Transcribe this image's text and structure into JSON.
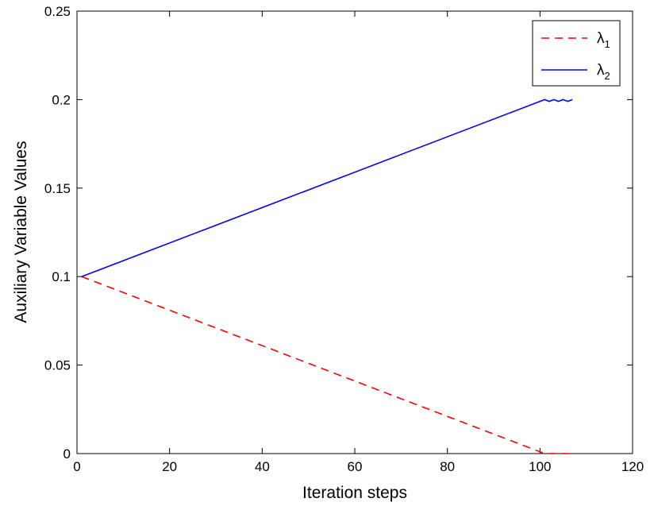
{
  "chart_data": {
    "type": "line",
    "title": "",
    "xlabel": "Iteration steps",
    "ylabel": "Auxiliary Variable Values",
    "xlim": [
      0,
      120
    ],
    "ylim": [
      0,
      0.25
    ],
    "xticks": [
      0,
      20,
      40,
      60,
      80,
      100,
      120
    ],
    "xtick_labels": [
      "0",
      "20",
      "40",
      "60",
      "80",
      "100",
      "120"
    ],
    "yticks": [
      0,
      0.05,
      0.1,
      0.15,
      0.2,
      0.25
    ],
    "ytick_labels": [
      "0",
      "0.05",
      "0.1",
      "0.15",
      "0.2",
      "0.25"
    ],
    "grid": false,
    "legend": {
      "position": "top-right"
    },
    "series": [
      {
        "name": "λ1",
        "name_base": "λ",
        "name_sub": "1",
        "color": "#ff0000",
        "style": "dashed",
        "x": [
          1,
          101,
          102,
          103,
          104,
          105,
          106,
          107
        ],
        "y": [
          0.1,
          0.0,
          0.0,
          0.0,
          0.0,
          0.0,
          0.0,
          0.0
        ]
      },
      {
        "name": "λ2",
        "name_base": "λ",
        "name_sub": "2",
        "color": "#0000ff",
        "style": "solid",
        "x": [
          1,
          101,
          102,
          103,
          104,
          105,
          106,
          107
        ],
        "y": [
          0.1,
          0.2,
          0.199,
          0.2,
          0.199,
          0.2,
          0.199,
          0.2
        ]
      }
    ]
  }
}
